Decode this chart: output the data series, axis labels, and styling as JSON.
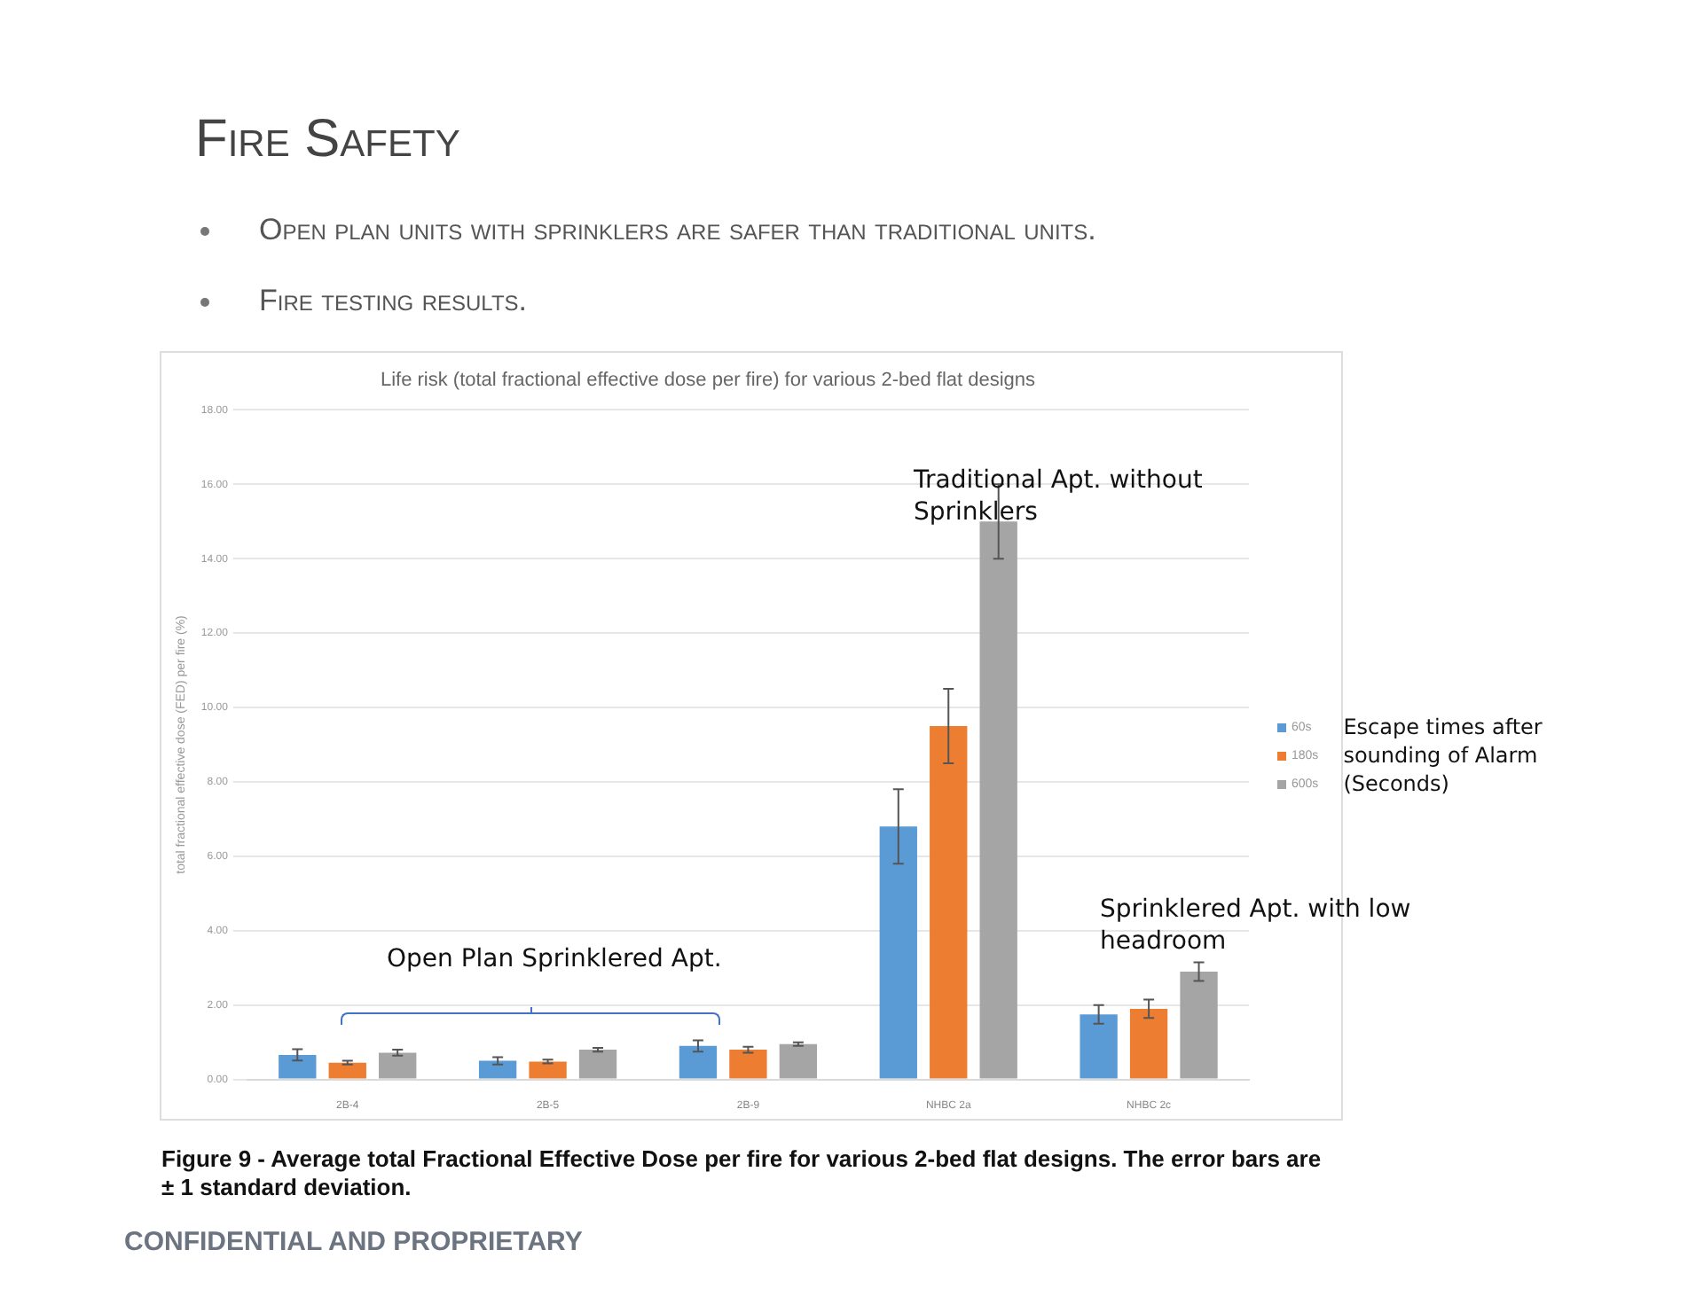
{
  "chart_data": {
    "type": "bar",
    "title": "Fire Safety",
    "subtitle": "Life risk (total fractional effective dose per fire) for various 2-bed flat designs",
    "ylabel": "total fractional effective dose (FED) per fire (%)",
    "legend_title": "Escape times after sounding of Alarm (Seconds)",
    "categories": [
      "2B-4",
      "2B-5",
      "2B-9",
      "NHBC 2a",
      "NHBC 2c"
    ],
    "series": [
      {
        "name": "60s",
        "color": "#5b9bd5",
        "values": [
          0.66,
          0.5,
          0.9,
          6.8,
          1.75
        ],
        "errors": [
          0.15,
          0.1,
          0.15,
          1.0,
          0.25
        ]
      },
      {
        "name": "180s",
        "color": "#ed7d31",
        "values": [
          0.45,
          0.48,
          0.8,
          9.5,
          1.9
        ],
        "errors": [
          0.05,
          0.05,
          0.08,
          1.0,
          0.25
        ]
      },
      {
        "name": "600s",
        "color": "#a5a5a5",
        "values": [
          0.72,
          0.8,
          0.95,
          15.0,
          2.9
        ],
        "errors": [
          0.08,
          0.05,
          0.05,
          1.0,
          0.25
        ]
      }
    ],
    "ylim": [
      0,
      18
    ],
    "yticks": [
      {
        "value": 0,
        "label": "0.00"
      },
      {
        "value": 2,
        "label": "2.00"
      },
      {
        "value": 4,
        "label": "4.00"
      },
      {
        "value": 6,
        "label": "6.00"
      },
      {
        "value": 8,
        "label": "8.00"
      },
      {
        "value": 10,
        "label": "10.00"
      },
      {
        "value": 12,
        "label": "12.00"
      },
      {
        "value": 14,
        "label": "14.00"
      },
      {
        "value": 16,
        "label": "16.00"
      },
      {
        "value": 18,
        "label": "18.00"
      }
    ],
    "grid": "y",
    "legend": "right",
    "annotations": [
      "Open plan units with sprinklers are safer than traditional units.",
      "Fire testing results.",
      "Traditional Apt. without Sprinklers",
      "Sprinklered Apt. with low headroom",
      "Open Plan Sprinklered Apt.",
      "Figure 9 - Average total Fractional Effective Dose per fire for various 2-bed flat designs. The error bars are ± 1 standard deviation.",
      "CONFIDENTIAL AND PROPRIETARY"
    ]
  }
}
